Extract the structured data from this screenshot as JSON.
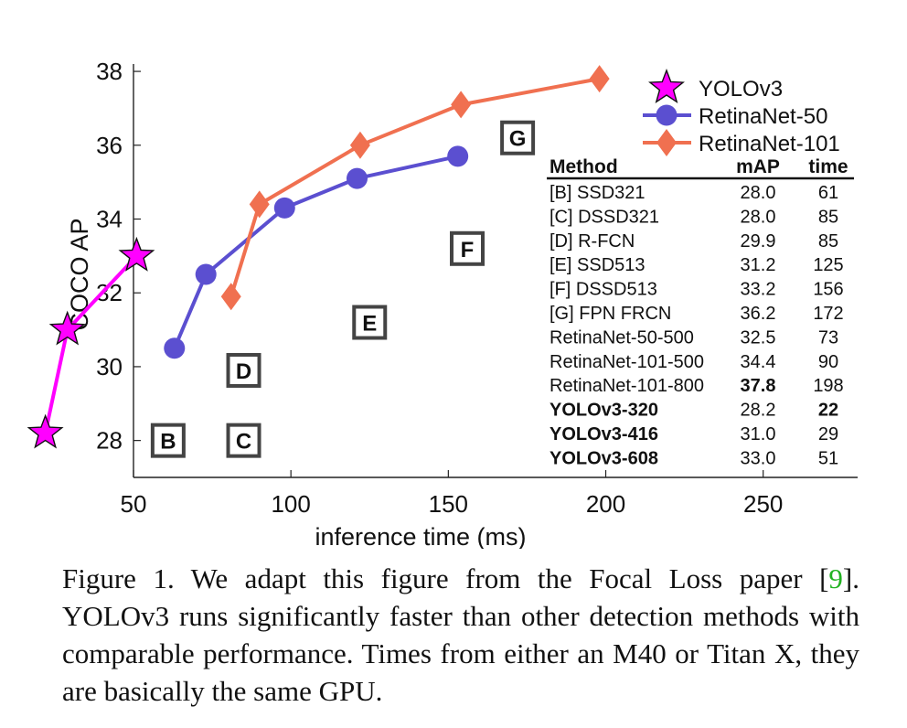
{
  "chart_data": {
    "type": "line",
    "xlabel": "inference time (ms)",
    "ylabel": "COCO AP",
    "xlim": [
      50,
      280
    ],
    "ylim": [
      27,
      38.2
    ],
    "xticks": [
      50,
      100,
      150,
      200,
      250
    ],
    "yticks": [
      28,
      30,
      32,
      34,
      36,
      38
    ],
    "legend_position": "top-right",
    "series": [
      {
        "name": "YOLOv3",
        "color": "#ff00ff",
        "marker": "star",
        "points": [
          [
            22,
            28.2
          ],
          [
            29,
            31.0
          ],
          [
            51,
            33.0
          ]
        ]
      },
      {
        "name": "RetinaNet-50",
        "color": "#5b4fd0",
        "marker": "circle",
        "points": [
          [
            63,
            30.5
          ],
          [
            73,
            32.5
          ],
          [
            98,
            34.3
          ],
          [
            121,
            35.1
          ],
          [
            153,
            35.7
          ]
        ]
      },
      {
        "name": "RetinaNet-101",
        "color": "#f07050",
        "marker": "diamond",
        "points": [
          [
            81,
            31.9
          ],
          [
            90,
            34.4
          ],
          [
            122,
            36.0
          ],
          [
            154,
            37.1
          ],
          [
            198,
            37.8
          ]
        ]
      }
    ],
    "boxes": [
      {
        "label": "B",
        "x": 61,
        "y": 28.0
      },
      {
        "label": "C",
        "x": 85,
        "y": 28.0
      },
      {
        "label": "D",
        "x": 85,
        "y": 29.9
      },
      {
        "label": "E",
        "x": 125,
        "y": 31.2
      },
      {
        "label": "F",
        "x": 156,
        "y": 33.2
      },
      {
        "label": "G",
        "x": 172,
        "y": 36.2
      }
    ],
    "table": {
      "headers": [
        "Method",
        "mAP",
        "time"
      ],
      "rows": [
        {
          "method": "[B] SSD321",
          "map": "28.0",
          "time": "61",
          "bold_method": false,
          "bold_map": false,
          "bold_time": false
        },
        {
          "method": "[C] DSSD321",
          "map": "28.0",
          "time": "85",
          "bold_method": false,
          "bold_map": false,
          "bold_time": false
        },
        {
          "method": "[D] R-FCN",
          "map": "29.9",
          "time": "85",
          "bold_method": false,
          "bold_map": false,
          "bold_time": false
        },
        {
          "method": "[E] SSD513",
          "map": "31.2",
          "time": "125",
          "bold_method": false,
          "bold_map": false,
          "bold_time": false
        },
        {
          "method": "[F] DSSD513",
          "map": "33.2",
          "time": "156",
          "bold_method": false,
          "bold_map": false,
          "bold_time": false
        },
        {
          "method": "[G] FPN FRCN",
          "map": "36.2",
          "time": "172",
          "bold_method": false,
          "bold_map": false,
          "bold_time": false
        },
        {
          "method": "RetinaNet-50-500",
          "map": "32.5",
          "time": "73",
          "bold_method": false,
          "bold_map": false,
          "bold_time": false
        },
        {
          "method": "RetinaNet-101-500",
          "map": "34.4",
          "time": "90",
          "bold_method": false,
          "bold_map": false,
          "bold_time": false
        },
        {
          "method": "RetinaNet-101-800",
          "map": "37.8",
          "time": "198",
          "bold_method": false,
          "bold_map": true,
          "bold_time": false
        },
        {
          "method": "YOLOv3-320",
          "map": "28.2",
          "time": "22",
          "bold_method": true,
          "bold_map": false,
          "bold_time": true
        },
        {
          "method": "YOLOv3-416",
          "map": "31.0",
          "time": "29",
          "bold_method": true,
          "bold_map": false,
          "bold_time": false
        },
        {
          "method": "YOLOv3-608",
          "map": "33.0",
          "time": "51",
          "bold_method": true,
          "bold_map": false,
          "bold_time": false
        }
      ]
    }
  },
  "caption": {
    "lead": "Figure 1. We adapt this figure from the Focal Loss paper [",
    "ref": "9",
    "tail": "]. YOLOv3 runs significantly faster than other detection methods with comparable performance. Times from either an M40 or Titan X, they are basically the same GPU."
  }
}
